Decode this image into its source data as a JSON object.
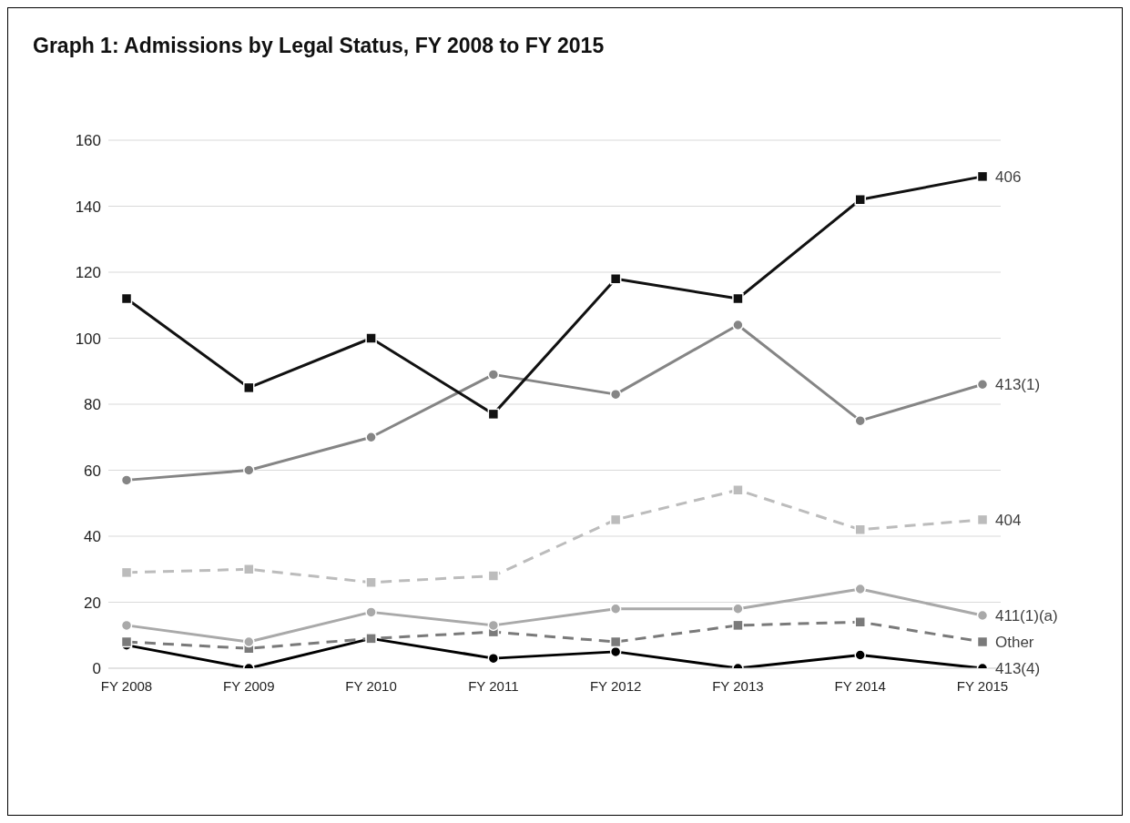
{
  "chart_data": {
    "type": "line",
    "title": "Graph 1: Admissions by Legal Status, FY 2008 to FY 2015",
    "categories": [
      "FY 2008",
      "FY 2009",
      "FY 2010",
      "FY 2011",
      "FY 2012",
      "FY 2013",
      "FY 2014",
      "FY 2015"
    ],
    "ylim": [
      0,
      160
    ],
    "yticks": [
      0,
      20,
      40,
      60,
      80,
      100,
      120,
      140,
      160
    ],
    "grid": "y",
    "series": [
      {
        "name": "406",
        "color": "#111111",
        "marker": "square",
        "line_style": "solid",
        "values": [
          112,
          85,
          100,
          77,
          118,
          112,
          142,
          149
        ]
      },
      {
        "name": "413(1)",
        "color": "#858585",
        "marker": "circle",
        "line_style": "solid",
        "values": [
          57,
          60,
          70,
          89,
          83,
          104,
          75,
          86
        ]
      },
      {
        "name": "404",
        "color": "#bcbcbc",
        "marker": "square",
        "line_style": "dashed",
        "values": [
          29,
          30,
          26,
          28,
          45,
          54,
          42,
          45
        ]
      },
      {
        "name": "411(1)(a)",
        "color": "#a9a9a9",
        "marker": "circle",
        "line_style": "solid",
        "values": [
          13,
          8,
          17,
          13,
          18,
          18,
          24,
          16
        ]
      },
      {
        "name": "Other",
        "color": "#7a7a7a",
        "marker": "square",
        "line_style": "dashed",
        "values": [
          8,
          6,
          9,
          11,
          8,
          13,
          14,
          8
        ]
      },
      {
        "name": "413(4)",
        "color": "#000000",
        "marker": "circle",
        "line_style": "solid",
        "values": [
          7,
          0,
          9,
          3,
          5,
          0,
          4,
          0
        ]
      }
    ]
  }
}
